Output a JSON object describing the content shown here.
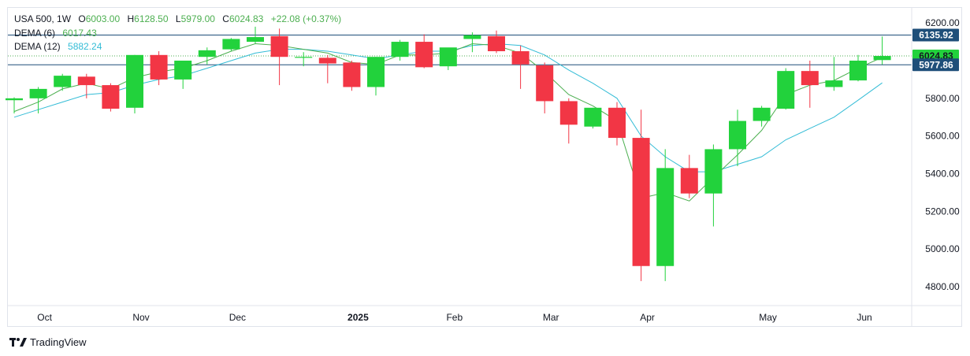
{
  "legend": {
    "symbol": "USA 500",
    "interval": "1W",
    "open_label": "O",
    "open": "6003.00",
    "high_label": "H",
    "high": "6128.50",
    "low_label": "L",
    "low": "5979.00",
    "close_label": "C",
    "close": "6024.83",
    "change": "+22.08",
    "change_pct": "(+0.37%)",
    "dema6_label": "DEMA (6)",
    "dema6_value": "6017.43",
    "dema12_label": "DEMA (12)",
    "dema12_value": "5882.24"
  },
  "brand": "TradingView",
  "colors": {
    "up": "#22d23c",
    "down": "#f23645",
    "dema6": "#4caf50",
    "dema12": "#33bcd6",
    "hline": "#1e4e79",
    "grid": "#f0f3fa"
  },
  "chart_data": {
    "type": "candlestick",
    "x_labels": [
      "Oct",
      "Nov",
      "Dec",
      "2025",
      "Feb",
      "Mar",
      "Apr",
      "May",
      "Jun"
    ],
    "y_ticks": [
      4800,
      5000,
      5200,
      5400,
      5600,
      5800,
      6200
    ],
    "ylim": [
      4700,
      6280
    ],
    "price_labels": [
      {
        "value": 6135.92,
        "text": "6135.92",
        "style": "blue-outline"
      },
      {
        "value": 6024.83,
        "text": "6024.83",
        "style": "green"
      },
      {
        "value": 5977.86,
        "text": "5977.86",
        "style": "blue"
      }
    ],
    "horizontal_lines": [
      6135.92,
      5977.86
    ],
    "last_price_line": 6024.83,
    "candles": [
      {
        "o": 5790,
        "h": 5805,
        "l": 5720,
        "c": 5800
      },
      {
        "o": 5800,
        "h": 5860,
        "l": 5720,
        "c": 5850
      },
      {
        "o": 5860,
        "h": 5930,
        "l": 5840,
        "c": 5920
      },
      {
        "o": 5915,
        "h": 5930,
        "l": 5800,
        "c": 5870
      },
      {
        "o": 5870,
        "h": 5880,
        "l": 5730,
        "c": 5745
      },
      {
        "o": 5750,
        "h": 6030,
        "l": 5720,
        "c": 6030
      },
      {
        "o": 6030,
        "h": 6050,
        "l": 5870,
        "c": 5900
      },
      {
        "o": 5900,
        "h": 6000,
        "l": 5850,
        "c": 6000
      },
      {
        "o": 6020,
        "h": 6070,
        "l": 5980,
        "c": 6055
      },
      {
        "o": 6060,
        "h": 6120,
        "l": 6050,
        "c": 6115
      },
      {
        "o": 6100,
        "h": 6180,
        "l": 6090,
        "c": 6125
      },
      {
        "o": 6130,
        "h": 6170,
        "l": 5870,
        "c": 6020
      },
      {
        "o": 6015,
        "h": 6045,
        "l": 5970,
        "c": 6020
      },
      {
        "o": 6015,
        "h": 6030,
        "l": 5880,
        "c": 5985
      },
      {
        "o": 5990,
        "h": 6000,
        "l": 5840,
        "c": 5860
      },
      {
        "o": 5860,
        "h": 6020,
        "l": 5815,
        "c": 6020
      },
      {
        "o": 6020,
        "h": 6110,
        "l": 6000,
        "c": 6100
      },
      {
        "o": 6100,
        "h": 6140,
        "l": 5960,
        "c": 5965
      },
      {
        "o": 5970,
        "h": 6060,
        "l": 5950,
        "c": 6070
      },
      {
        "o": 6115,
        "h": 6150,
        "l": 6045,
        "c": 6135
      },
      {
        "o": 6130,
        "h": 6160,
        "l": 6040,
        "c": 6050
      },
      {
        "o": 6050,
        "h": 6080,
        "l": 5850,
        "c": 5980
      },
      {
        "o": 5975,
        "h": 5990,
        "l": 5720,
        "c": 5785
      },
      {
        "o": 5785,
        "h": 5800,
        "l": 5560,
        "c": 5660
      },
      {
        "o": 5650,
        "h": 5750,
        "l": 5640,
        "c": 5750
      },
      {
        "o": 5750,
        "h": 5780,
        "l": 5550,
        "c": 5590
      },
      {
        "o": 5590,
        "h": 5740,
        "l": 4830,
        "c": 4910
      },
      {
        "o": 4910,
        "h": 5530,
        "l": 4830,
        "c": 5430
      },
      {
        "o": 5430,
        "h": 5500,
        "l": 5270,
        "c": 5295
      },
      {
        "o": 5295,
        "h": 5555,
        "l": 5120,
        "c": 5530
      },
      {
        "o": 5530,
        "h": 5740,
        "l": 5440,
        "c": 5680
      },
      {
        "o": 5680,
        "h": 5760,
        "l": 5650,
        "c": 5750
      },
      {
        "o": 5745,
        "h": 5960,
        "l": 5740,
        "c": 5945
      },
      {
        "o": 5945,
        "h": 6000,
        "l": 5750,
        "c": 5870
      },
      {
        "o": 5860,
        "h": 6020,
        "l": 5840,
        "c": 5895
      },
      {
        "o": 5895,
        "h": 6030,
        "l": 5890,
        "c": 6000
      },
      {
        "o": 6003,
        "h": 6128.5,
        "l": 5979,
        "c": 6024.83
      }
    ],
    "dema6": [
      5730,
      5780,
      5850,
      5880,
      5850,
      5910,
      5940,
      5960,
      6000,
      6050,
      6090,
      6080,
      6060,
      6040,
      5990,
      5980,
      6030,
      6030,
      6040,
      6090,
      6080,
      6040,
      5940,
      5820,
      5760,
      5680,
      5270,
      5300,
      5255,
      5380,
      5500,
      5630,
      5820,
      5870,
      5895,
      5960,
      6017.43
    ],
    "dema12": [
      5700,
      5740,
      5780,
      5820,
      5830,
      5870,
      5900,
      5920,
      5960,
      6000,
      6040,
      6060,
      6060,
      6050,
      6030,
      6010,
      6030,
      6050,
      6050,
      6080,
      6090,
      6080,
      6030,
      5950,
      5880,
      5800,
      5600,
      5490,
      5410,
      5410,
      5450,
      5490,
      5580,
      5640,
      5700,
      5790,
      5882.24
    ]
  }
}
